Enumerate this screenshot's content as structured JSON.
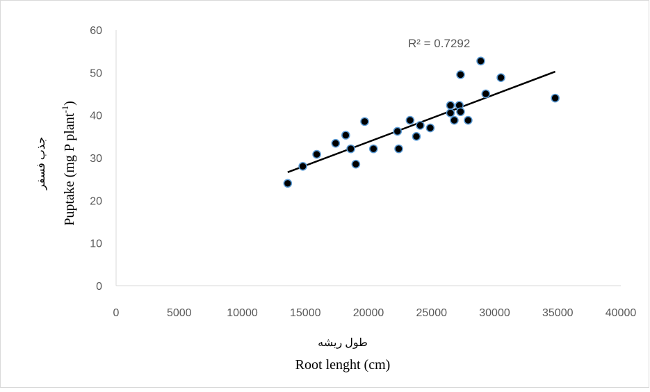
{
  "chart_data": {
    "type": "scatter",
    "title": "",
    "xlabel_fa": "طول ریشه",
    "xlabel": "Root lenght (cm)",
    "ylabel_fa": "جذب فسفر",
    "ylabel_main": "Puptake (mg P plant",
    "ylabel_sup": "-1",
    "ylabel_close": ")",
    "xlim": [
      0,
      40000
    ],
    "ylim": [
      0,
      60
    ],
    "xticks": [
      0,
      5000,
      10000,
      15000,
      20000,
      25000,
      30000,
      35000,
      40000
    ],
    "yticks": [
      0,
      10,
      20,
      30,
      40,
      50,
      60
    ],
    "grid": false,
    "trendline": {
      "type": "linear",
      "x": [
        13600,
        34800
      ],
      "y": [
        26.6,
        50.2
      ]
    },
    "r2_label": "R² = 0.7292",
    "marker_color": "#000000",
    "marker_edge": "#5b9bd5",
    "line_color": "#000000",
    "points": [
      {
        "x": 13600,
        "y": 24.0
      },
      {
        "x": 14800,
        "y": 28.0
      },
      {
        "x": 15900,
        "y": 30.8
      },
      {
        "x": 17400,
        "y": 33.4
      },
      {
        "x": 18200,
        "y": 35.3
      },
      {
        "x": 18600,
        "y": 32.1
      },
      {
        "x": 19000,
        "y": 28.5
      },
      {
        "x": 19700,
        "y": 38.5
      },
      {
        "x": 20400,
        "y": 32.1
      },
      {
        "x": 22300,
        "y": 36.2
      },
      {
        "x": 22400,
        "y": 32.1
      },
      {
        "x": 23300,
        "y": 38.8
      },
      {
        "x": 23800,
        "y": 35.0
      },
      {
        "x": 24100,
        "y": 37.6
      },
      {
        "x": 24900,
        "y": 37.0
      },
      {
        "x": 26500,
        "y": 42.3
      },
      {
        "x": 26500,
        "y": 40.5
      },
      {
        "x": 26800,
        "y": 38.8
      },
      {
        "x": 27200,
        "y": 42.3
      },
      {
        "x": 27300,
        "y": 40.8
      },
      {
        "x": 27300,
        "y": 49.5
      },
      {
        "x": 27900,
        "y": 38.8
      },
      {
        "x": 28900,
        "y": 52.7
      },
      {
        "x": 29300,
        "y": 45.0
      },
      {
        "x": 30500,
        "y": 48.8
      },
      {
        "x": 34800,
        "y": 44.0
      }
    ]
  }
}
